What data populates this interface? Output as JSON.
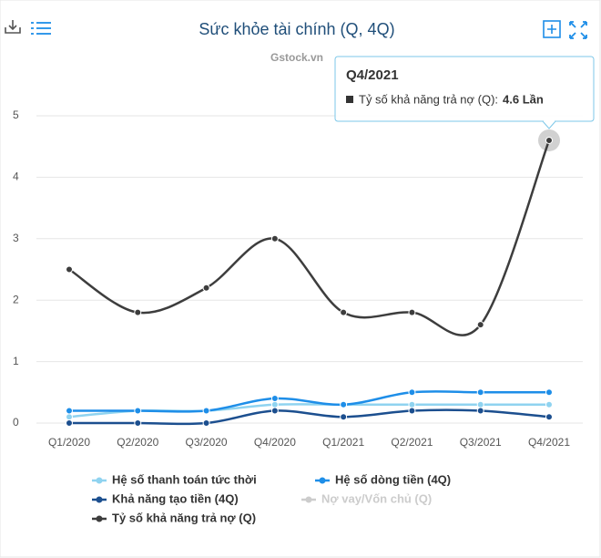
{
  "chart_data": {
    "type": "line",
    "title": "Sức khỏe tài chính (Q, 4Q)",
    "credit": "Gstock.vn",
    "categories": [
      "Q1/2020",
      "Q2/2020",
      "Q3/2020",
      "Q4/2020",
      "Q1/2021",
      "Q2/2021",
      "Q3/2021",
      "Q4/2021"
    ],
    "series": [
      {
        "name": "Hệ số thanh toán tức thời",
        "color": "#8fd3f0",
        "visible": true,
        "values": [
          0.1,
          0.2,
          0.2,
          0.3,
          0.3,
          0.3,
          0.3,
          0.3
        ]
      },
      {
        "name": "Hệ số dòng tiền (4Q)",
        "color": "#1e8ee8",
        "visible": true,
        "values": [
          0.2,
          0.2,
          0.2,
          0.4,
          0.3,
          0.5,
          0.5,
          0.5
        ]
      },
      {
        "name": "Khả năng tạo tiền (4Q)",
        "color": "#1c4f8f",
        "visible": true,
        "values": [
          0,
          0,
          0,
          0.2,
          0.1,
          0.2,
          0.2,
          0.1
        ]
      },
      {
        "name": "Nợ vay/Vốn chủ (Q)",
        "color": "#cccccc",
        "visible": false,
        "values": [
          null,
          null,
          null,
          null,
          null,
          null,
          null,
          null
        ]
      },
      {
        "name": "Tỷ số khả năng trả nợ (Q)",
        "color": "#3d3d3d",
        "visible": true,
        "values": [
          2.5,
          1.8,
          2.2,
          3.0,
          1.8,
          1.8,
          1.6,
          4.6
        ]
      }
    ],
    "ylim": [
      0,
      5
    ],
    "yticks": [
      0,
      1,
      2,
      3,
      4,
      5
    ],
    "grid": true,
    "tooltip": {
      "series": 4,
      "index": 7,
      "label": "Tỷ số khả năng trả nợ (Q):",
      "value_label": "4.6 Lần"
    }
  }
}
